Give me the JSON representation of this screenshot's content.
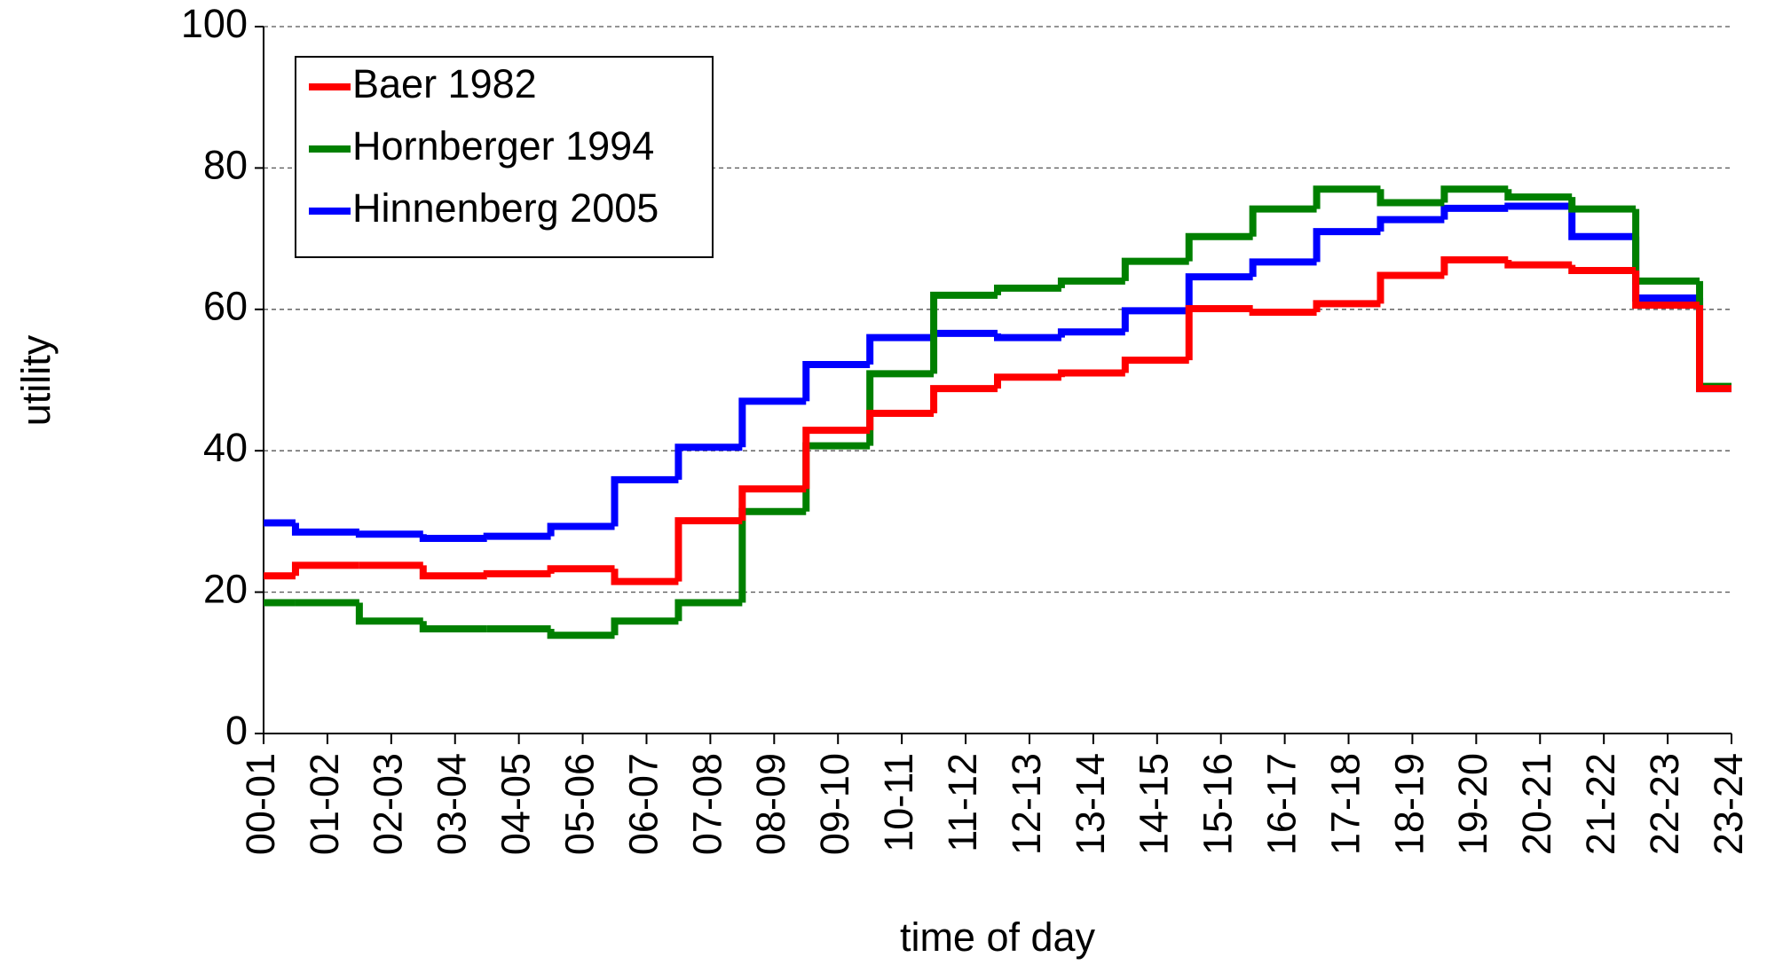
{
  "chart_data": {
    "type": "step",
    "x_label": "time of day",
    "y_label": "utility",
    "categories": [
      "00-01",
      "01-02",
      "02-03",
      "03-04",
      "04-05",
      "05-06",
      "06-07",
      "07-08",
      "08-09",
      "09-10",
      "10-11",
      "11-12",
      "12-13",
      "13-14",
      "14-15",
      "15-16",
      "16-17",
      "17-18",
      "18-19",
      "19-20",
      "20-21",
      "21-22",
      "22-23",
      "23-24"
    ],
    "series": [
      {
        "name": "Baer 1982",
        "color": "#ff0000",
        "values": [
          22.3,
          23.8,
          23.8,
          22.3,
          22.6,
          23.3,
          21.5,
          30.1,
          34.6,
          42.9,
          45.3,
          48.8,
          50.4,
          51.0,
          52.8,
          60.1,
          59.6,
          60.8,
          64.8,
          67.0,
          66.3,
          65.5,
          60.6,
          48.8
        ]
      },
      {
        "name": "Hornberger 1994",
        "color": "#008000",
        "values": [
          18.5,
          18.5,
          15.9,
          14.8,
          14.8,
          13.9,
          15.9,
          18.5,
          31.4,
          40.7,
          50.9,
          62.0,
          63.0,
          64.0,
          66.8,
          70.3,
          74.2,
          77.0,
          75.1,
          77.0,
          75.9,
          74.2,
          64.0,
          49.1
        ]
      },
      {
        "name": "Hinnenberg 2005",
        "color": "#0000ff",
        "values": [
          29.8,
          28.5,
          28.2,
          27.6,
          27.9,
          29.3,
          35.9,
          40.5,
          47.0,
          52.2,
          56.0,
          56.6,
          56.0,
          56.8,
          59.8,
          64.6,
          66.7,
          71.0,
          72.7,
          74.3,
          74.6,
          70.3,
          61.6,
          48.8
        ]
      }
    ],
    "ylim": [
      0,
      100
    ],
    "yticks": [
      0,
      20,
      40,
      60,
      80,
      100
    ],
    "grid": true,
    "legend": "upper left"
  }
}
